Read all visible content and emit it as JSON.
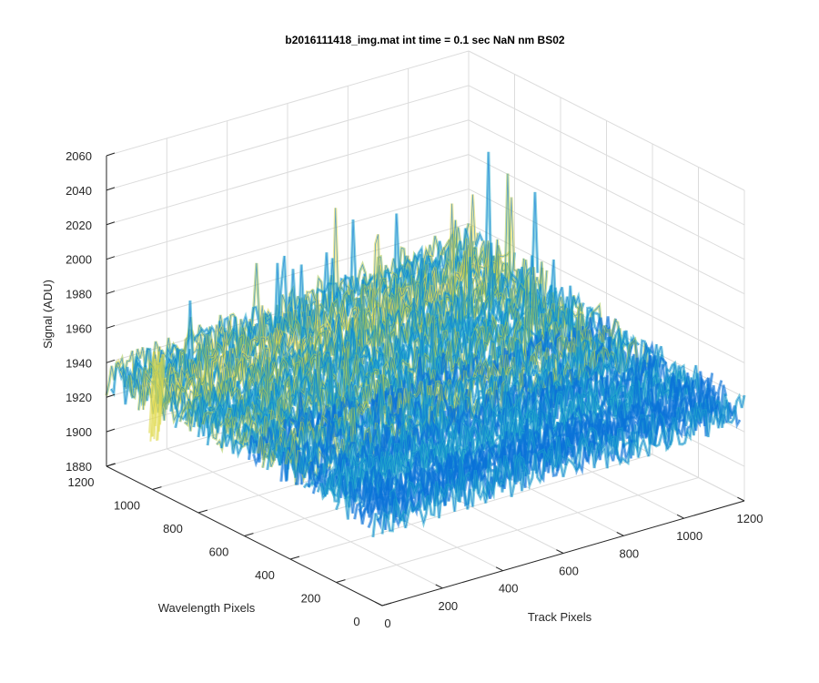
{
  "chart_data": {
    "type": "surface",
    "title": "b2016111418_img.mat int time = 0.1 sec  NaN nm BS02",
    "xlabel": "Track Pixels",
    "ylabel": "Wavelength Pixels",
    "zlabel": "Signal (ADU)",
    "xlim": [
      0,
      1200
    ],
    "ylim": [
      0,
      1200
    ],
    "zlim": [
      1880,
      2060
    ],
    "x_ticks": [
      "0",
      "200",
      "400",
      "600",
      "800",
      "1000",
      "1200"
    ],
    "y_ticks": [
      "0",
      "200",
      "400",
      "600",
      "800",
      "1000",
      "1200"
    ],
    "z_ticks": [
      "1880",
      "1900",
      "1920",
      "1940",
      "1960",
      "1980",
      "2000",
      "2020",
      "2040",
      "2060"
    ],
    "grid": true,
    "colormap": "parula",
    "surface_summary": {
      "baseline_signal": 1940,
      "noise_range": [
        1900,
        2040
      ],
      "peak_region": "far edge near track 1000-1200, wavelength 1000-1200"
    }
  },
  "colors": {
    "low": "#0a72d8",
    "mid": "#1fa8c9",
    "high": "#a6c84e",
    "peak": "#e0d84a"
  }
}
